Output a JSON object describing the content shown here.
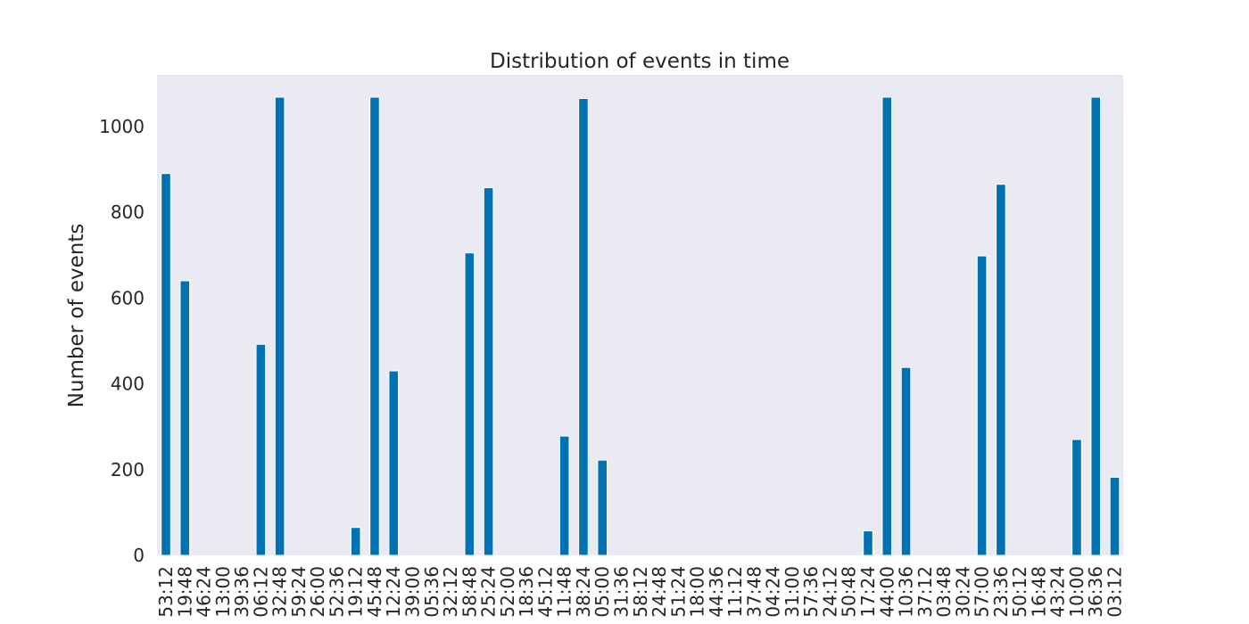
{
  "chart_data": {
    "type": "bar",
    "title": "Distribution of events in time",
    "xlabel": "",
    "ylabel": "Number of events",
    "ylim": [
      0,
      1120
    ],
    "yticks": [
      0,
      200,
      400,
      600,
      800,
      1000
    ],
    "grid": false,
    "legend": "none",
    "colors": {
      "bar": "#0072B2",
      "plot_bg": "#EAEAF2"
    },
    "categories": [
      "53:12",
      "19:48",
      "46:24",
      "13:00",
      "39:36",
      "06:12",
      "32:48",
      "59:24",
      "26:00",
      "52:36",
      "19:12",
      "45:48",
      "12:24",
      "39:00",
      "05:36",
      "32:12",
      "58:48",
      "25:24",
      "52:00",
      "18:36",
      "45:12",
      "11:48",
      "38:24",
      "05:00",
      "31:36",
      "58:12",
      "24:48",
      "51:24",
      "18:00",
      "44:36",
      "11:12",
      "37:48",
      "04:24",
      "31:00",
      "57:36",
      "24:12",
      "50:48",
      "17:24",
      "44:00",
      "10:36",
      "37:12",
      "03:48",
      "30:24",
      "57:00",
      "23:36",
      "50:12",
      "16:48",
      "43:24",
      "10:00",
      "36:36",
      "03:12"
    ],
    "values": [
      890,
      640,
      0,
      0,
      0,
      492,
      1068,
      0,
      0,
      0,
      65,
      1068,
      430,
      0,
      0,
      0,
      705,
      857,
      0,
      0,
      0,
      278,
      1065,
      222,
      0,
      0,
      0,
      0,
      0,
      0,
      0,
      0,
      0,
      0,
      0,
      0,
      0,
      57,
      1068,
      438,
      0,
      0,
      0,
      698,
      865,
      0,
      0,
      0,
      270,
      1068,
      182
    ]
  }
}
